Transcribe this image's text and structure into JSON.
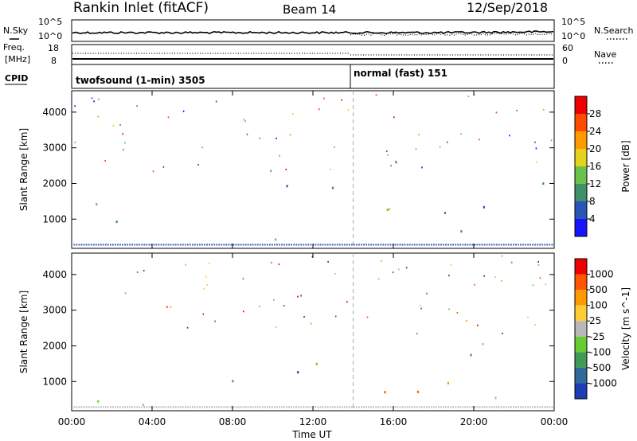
{
  "header": {
    "station": "Rankin Inlet (fitACF)",
    "beam": "Beam 14",
    "date": "12/Sep/2018"
  },
  "noise_panel": {
    "left_label": "N.Sky",
    "right_label": "N.Search",
    "left_ticks": [
      "10^5",
      "10^0"
    ],
    "right_ticks": [
      "10^5",
      "10^0"
    ]
  },
  "freq_panel": {
    "left_label": "Freq.",
    "left_unit": "[MHz]",
    "right_label": "Nave",
    "left_ticks": [
      "18",
      "8"
    ],
    "right_ticks": [
      "60",
      "0"
    ]
  },
  "cpid_panel": {
    "label": "CPID",
    "segments": [
      {
        "label": "twofsound (1-min) 3505",
        "start_hour": 0
      },
      {
        "label": "normal (fast) 151",
        "start_hour": 14
      }
    ]
  },
  "chart_data": [
    {
      "type": "heatmap",
      "title": "Power",
      "xlabel": "",
      "ylabel": "Slant Range [km]",
      "x_ticks": [
        "00:00",
        "04:00",
        "08:00",
        "12:00",
        "16:00",
        "20:00",
        "00:00"
      ],
      "xlim_hours": [
        0,
        24
      ],
      "y_ticks": [
        1000,
        2000,
        3000,
        4000
      ],
      "ylim": [
        180,
        4600
      ],
      "colorbar_label": "Power [dB]",
      "colorbar_ticks": [
        4,
        8,
        12,
        16,
        20,
        24,
        28
      ],
      "colorbar_colors": [
        "#1515ff",
        "#2a55b8",
        "#3f8f6a",
        "#6bc24a",
        "#e6d21a",
        "#ff9a00",
        "#ff4a00",
        "#ee0000"
      ],
      "cpid_change_hour": 14
    },
    {
      "type": "heatmap",
      "title": "Velocity",
      "xlabel": "Time UT",
      "ylabel": "Slant Range [km]",
      "x_ticks": [
        "00:00",
        "04:00",
        "08:00",
        "12:00",
        "16:00",
        "20:00",
        "00:00"
      ],
      "xlim_hours": [
        0,
        24
      ],
      "y_ticks": [
        1000,
        2000,
        3000,
        4000
      ],
      "ylim": [
        180,
        4600
      ],
      "colorbar_label": "Velocity [m s^-1]",
      "colorbar_ticks": [
        "1000",
        "500",
        "100",
        "25",
        "-25",
        "-100",
        "-500",
        "-1000"
      ],
      "colorbar_colors": [
        "#1e3cb4",
        "#2f6a9a",
        "#3f9a55",
        "#66cc33",
        "#b8b8b8",
        "#ffcc33",
        "#ff9900",
        "#ff5500",
        "#ee0000"
      ],
      "cpid_change_hour": 14
    }
  ]
}
